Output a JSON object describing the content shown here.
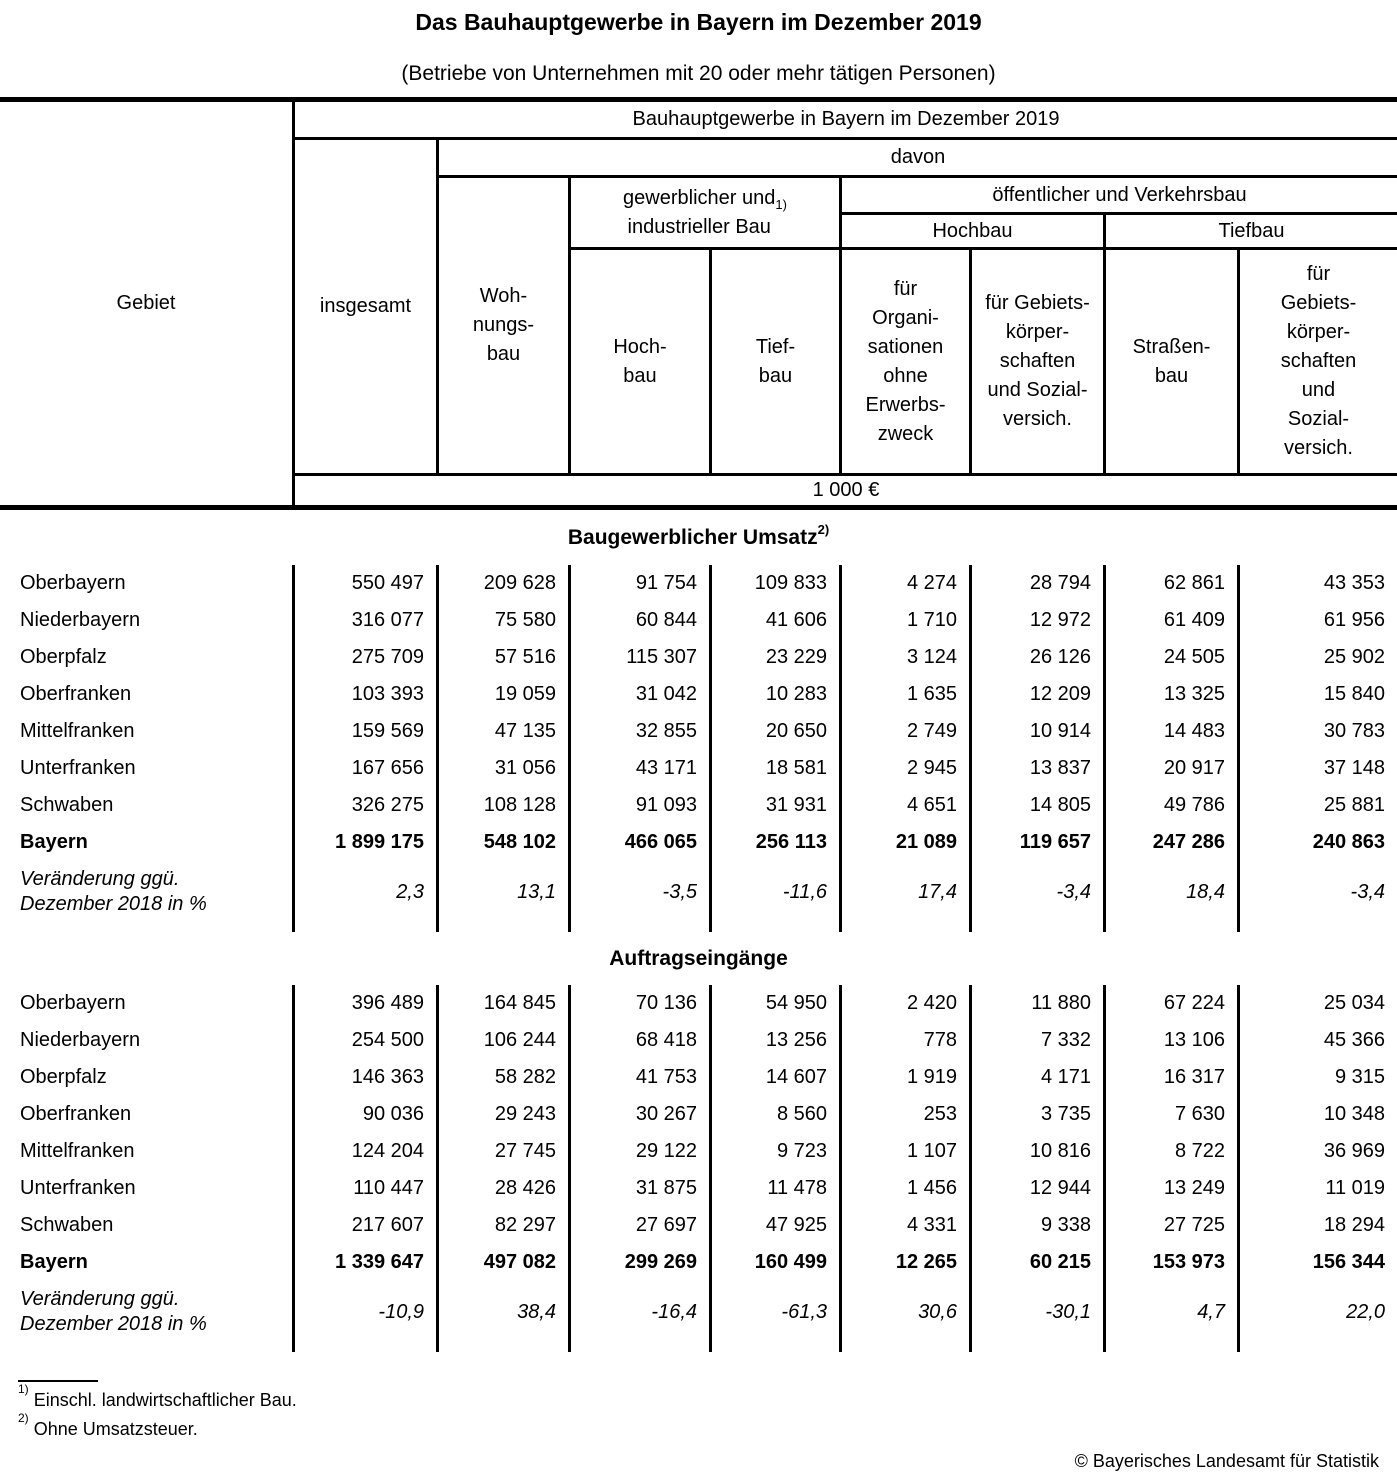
{
  "title": "Das Bauhauptgewerbe in Bayern im Dezember 2019",
  "subtitle": "(Betriebe von Unternehmen mit 20 oder mehr tätigen Personen)",
  "header": {
    "gebiet": "Gebiet",
    "span_title": "Bauhauptgewerbe in Bayern im Dezember 2019",
    "insgesamt": "insgesamt",
    "davon": "davon",
    "wohnungsbau": "Woh-\nnungs-\nbau",
    "gewerblicher_label": "gewerblicher und\nindustrieller Bau",
    "gewerblicher_ref": "1)",
    "oeffentlicher": "öffentlicher und Verkehrsbau",
    "hochbau_group": "Hochbau",
    "tiefbau_group": "Tiefbau",
    "hochbau_leaf": "Hoch-\nbau",
    "tiefbau_leaf": "Tief-\nbau",
    "fuer_org": "für\nOrgani-\nsationen\nohne\nErwerbs-\nzweck",
    "fuer_gebiets_hochbau": "für Gebiets-\nkörper-\nschaften\nund Sozial-\nversich.",
    "strassenbau": "Straßen-\nbau",
    "fuer_gebiets_tiefbau": "für\nGebiets-\nkörper-\nschaften\nund\nSozial-\nversich.",
    "unit": "1 000 €"
  },
  "sections": [
    {
      "title": "Baugewerblicher Umsatz",
      "title_ref": "2)",
      "rows": [
        {
          "label": "Oberbayern",
          "values": [
            "550 497",
            "209 628",
            "91 754",
            "109 833",
            "4 274",
            "28 794",
            "62 861",
            "43 353"
          ]
        },
        {
          "label": "Niederbayern",
          "values": [
            "316 077",
            "75 580",
            "60 844",
            "41 606",
            "1 710",
            "12 972",
            "61 409",
            "61 956"
          ]
        },
        {
          "label": "Oberpfalz",
          "values": [
            "275 709",
            "57 516",
            "115 307",
            "23 229",
            "3 124",
            "26 126",
            "24 505",
            "25 902"
          ]
        },
        {
          "label": "Oberfranken",
          "values": [
            "103 393",
            "19 059",
            "31 042",
            "10 283",
            "1 635",
            "12 209",
            "13 325",
            "15 840"
          ]
        },
        {
          "label": "Mittelfranken",
          "values": [
            "159 569",
            "47 135",
            "32 855",
            "20 650",
            "2 749",
            "10 914",
            "14 483",
            "30 783"
          ]
        },
        {
          "label": "Unterfranken",
          "values": [
            "167 656",
            "31 056",
            "43 171",
            "18 581",
            "2 945",
            "13 837",
            "20 917",
            "37 148"
          ]
        },
        {
          "label": "Schwaben",
          "values": [
            "326 275",
            "108 128",
            "91 093",
            "31 931",
            "4 651",
            "14 805",
            "49 786",
            "25 881"
          ]
        },
        {
          "label": "Bayern",
          "values": [
            "1 899 175",
            "548 102",
            "466 065",
            "256 113",
            "21 089",
            "119 657",
            "247 286",
            "240 863"
          ],
          "bold": true
        },
        {
          "label": "Veränderung ggü.\nDezember 2018 in %",
          "values": [
            "2,3",
            "13,1",
            "-3,5",
            "-11,6",
            "17,4",
            "-3,4",
            "18,4",
            "-3,4"
          ],
          "italic": true
        }
      ]
    },
    {
      "title": "Auftragseingänge",
      "title_ref": "",
      "rows": [
        {
          "label": "Oberbayern",
          "values": [
            "396 489",
            "164 845",
            "70 136",
            "54 950",
            "2 420",
            "11 880",
            "67 224",
            "25 034"
          ]
        },
        {
          "label": "Niederbayern",
          "values": [
            "254 500",
            "106 244",
            "68 418",
            "13 256",
            "778",
            "7 332",
            "13 106",
            "45 366"
          ]
        },
        {
          "label": "Oberpfalz",
          "values": [
            "146 363",
            "58 282",
            "41 753",
            "14 607",
            "1 919",
            "4 171",
            "16 317",
            "9 315"
          ]
        },
        {
          "label": "Oberfranken",
          "values": [
            "90 036",
            "29 243",
            "30 267",
            "8 560",
            "253",
            "3 735",
            "7 630",
            "10 348"
          ]
        },
        {
          "label": "Mittelfranken",
          "values": [
            "124 204",
            "27 745",
            "29 122",
            "9 723",
            "1 107",
            "10 816",
            "8 722",
            "36 969"
          ]
        },
        {
          "label": "Unterfranken",
          "values": [
            "110 447",
            "28 426",
            "31 875",
            "11 478",
            "1 456",
            "12 944",
            "13 249",
            "11 019"
          ]
        },
        {
          "label": "Schwaben",
          "values": [
            "217 607",
            "82 297",
            "27 697",
            "47 925",
            "4 331",
            "9 338",
            "27 725",
            "18 294"
          ]
        },
        {
          "label": "Bayern",
          "values": [
            "1 339 647",
            "497 082",
            "299 269",
            "160 499",
            "12 265",
            "60 215",
            "153 973",
            "156 344"
          ],
          "bold": true
        },
        {
          "label": "Veränderung ggü.\nDezember 2018 in %",
          "values": [
            "-10,9",
            "38,4",
            "-16,4",
            "-61,3",
            "30,6",
            "-30,1",
            "4,7",
            "22,0"
          ],
          "italic": true
        }
      ]
    }
  ],
  "footnotes": [
    {
      "ref": "1)",
      "text": "Einschl. landwirtschaftlicher Bau."
    },
    {
      "ref": "2)",
      "text": "Ohne Umsatzsteuer."
    }
  ],
  "copyright": "© Bayerisches Landesamt für Statistik"
}
